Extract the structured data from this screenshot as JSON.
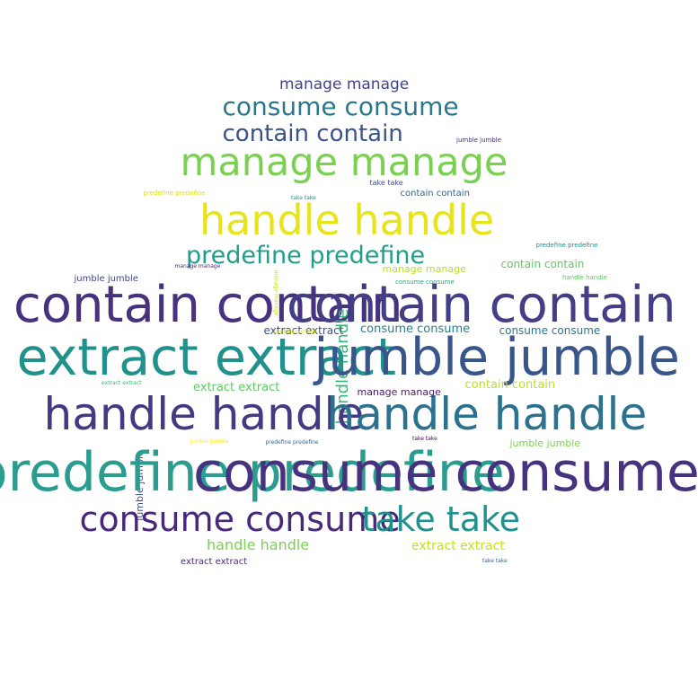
{
  "palette": {
    "deep_purple": "#440154",
    "indigo": "#3b528b",
    "slate_blue": "#46327e",
    "teal_blue": "#2c728e",
    "teal": "#21918c",
    "sea_green": "#28ae80",
    "green": "#5ec962",
    "lime": "#addc30",
    "yellow": "#e4d91a",
    "bright_yellow": "#fde725"
  },
  "words": [
    {
      "text": "manage manage",
      "color": "#414487"
    },
    {
      "text": "consume consume",
      "color": "#2a788e"
    },
    {
      "text": "contain contain",
      "color": "#3b528b"
    },
    {
      "text": "jumble jumble",
      "color": "#46327e"
    },
    {
      "text": "manage manage",
      "color": "#7ad151"
    },
    {
      "text": "predefine predefine",
      "color": "#d8e219"
    },
    {
      "text": "take take",
      "color": "#3b528b"
    },
    {
      "text": "take take",
      "color": "#21918c"
    },
    {
      "text": "contain contain",
      "color": "#355f8d"
    },
    {
      "text": "handle handle",
      "color": "#e7e419"
    },
    {
      "text": "predefine predefine",
      "color": "#1f9e89"
    },
    {
      "text": "predefine predefine",
      "color": "#21918c"
    },
    {
      "text": "contain contain",
      "color": "#5ec962"
    },
    {
      "text": "manage manage",
      "color": "#b5de2b"
    },
    {
      "text": "jumble jumble",
      "color": "#3e4989"
    },
    {
      "text": "manage manage",
      "color": "#482878"
    },
    {
      "text": "consume consume",
      "color": "#22a884"
    },
    {
      "text": "handle handle",
      "color": "#5ec962"
    },
    {
      "text": "contain contain",
      "color": "#46327e"
    },
    {
      "text": "contain contain",
      "color": "#433e85"
    },
    {
      "text": "handle handle",
      "color": "#35b779"
    },
    {
      "text": "manage manage",
      "color": "#c8e020"
    },
    {
      "text": "extract extract",
      "color": "#3b528b"
    },
    {
      "text": "contain contain",
      "color": "#d8e219"
    },
    {
      "text": "consume consume",
      "color": "#26828e"
    },
    {
      "text": "consume consume",
      "color": "#2a788e"
    },
    {
      "text": "extract extract",
      "color": "#21918c"
    },
    {
      "text": "jumble jumble",
      "color": "#39568c"
    },
    {
      "text": "handle handle",
      "color": "#443983"
    },
    {
      "text": "handle handle",
      "color": "#2c728e"
    },
    {
      "text": "extract extract",
      "color": "#35b779"
    },
    {
      "text": "extract extract",
      "color": "#5ec962"
    },
    {
      "text": "manage manage",
      "color": "#481a6c"
    },
    {
      "text": "contain contain",
      "color": "#bddf26"
    },
    {
      "text": "jumble jumble",
      "color": "#fde725"
    },
    {
      "text": "predefine predefine",
      "color": "#31688e"
    },
    {
      "text": "take take",
      "color": "#440154"
    },
    {
      "text": "jumble jumble",
      "color": "#7ad151"
    },
    {
      "text": "jumble jumble",
      "color": "#3b528b"
    },
    {
      "text": "predefine predefine",
      "color": "#2a9d8f"
    },
    {
      "text": "consume consume",
      "color": "#46327e"
    },
    {
      "text": "consume consume",
      "color": "#482878"
    },
    {
      "text": "take take",
      "color": "#21918c"
    },
    {
      "text": "handle handle",
      "color": "#7ad151"
    },
    {
      "text": "extract extract",
      "color": "#c8e020"
    },
    {
      "text": "extract extract",
      "color": "#482878"
    },
    {
      "text": "take take",
      "color": "#31688e"
    }
  ]
}
